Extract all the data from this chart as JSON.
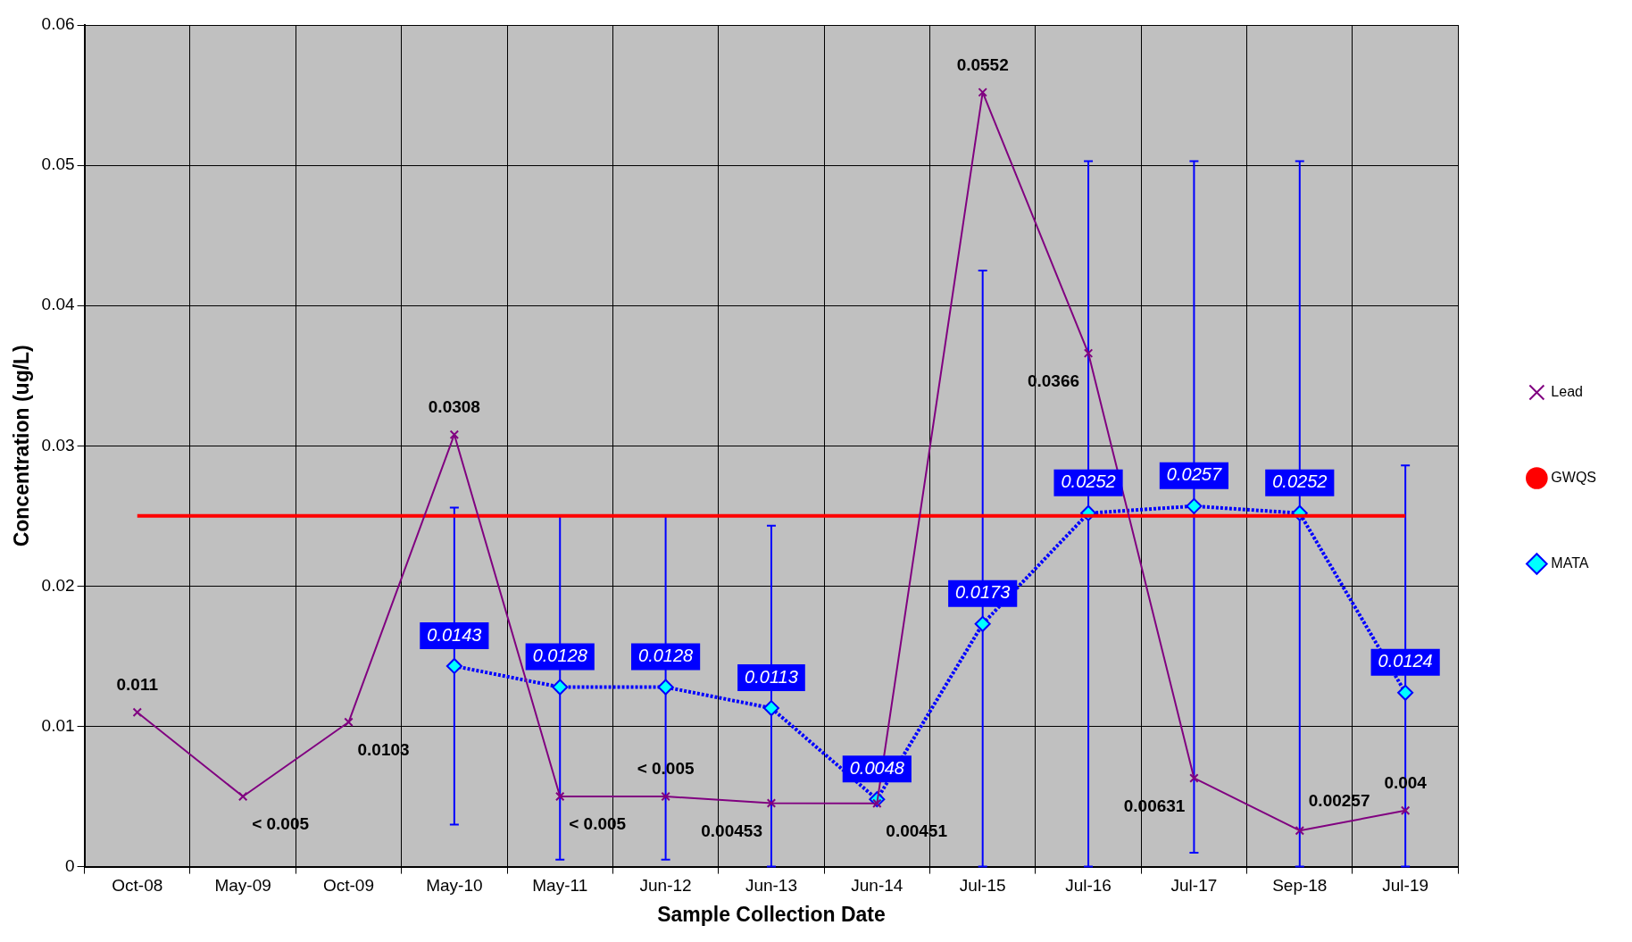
{
  "chart_data": {
    "type": "line",
    "xlabel": "Sample Collection Date",
    "ylabel": "Concentration (ug/L)",
    "categories": [
      "Oct-08",
      "May-09",
      "Oct-09",
      "May-10",
      "May-11",
      "Jun-12",
      "Jun-13",
      "Jun-14",
      "Jul-15",
      "Jul-16",
      "Jul-17",
      "Sep-18",
      "Jul-19"
    ],
    "series": [
      {
        "name": "Lead",
        "color": "#800080",
        "marker": "cross",
        "line_style": "solid",
        "values": [
          0.011,
          0.005,
          0.0103,
          0.0308,
          0.005,
          0.005,
          0.00453,
          0.00451,
          0.0552,
          0.0366,
          0.00631,
          0.00257,
          0.004
        ],
        "value_labels": [
          "0.011",
          "< 0.005",
          "0.0103",
          "0.0308",
          "< 0.005",
          "< 0.005",
          "0.00453",
          "0.00451",
          "0.0552",
          "0.0366",
          "0.00631",
          "0.00257",
          "0.004"
        ]
      },
      {
        "name": "GWQS",
        "color": "#ff0000",
        "marker": "none",
        "line_style": "solid",
        "values": [
          0.025,
          0.025,
          0.025,
          0.025,
          0.025,
          0.025,
          0.025,
          0.025,
          0.025,
          0.025,
          0.025,
          0.025,
          0.025
        ]
      },
      {
        "name": "MATA",
        "color": "#0000ff",
        "marker": "diamond",
        "line_style": "dotted",
        "values": [
          null,
          null,
          null,
          0.0143,
          0.0128,
          0.0128,
          0.0113,
          0.0048,
          0.0173,
          0.0252,
          0.0257,
          0.0252,
          0.0124
        ],
        "value_labels": [
          null,
          null,
          null,
          "0.0143",
          "0.0128",
          "0.0128",
          "0.0113",
          "0.0048",
          "0.0173",
          "0.0252",
          "0.0257",
          "0.0252",
          "0.0124"
        ],
        "errors": [
          null,
          null,
          null,
          [
            0.003,
            0.0256
          ],
          [
            0.0005,
            0.025
          ],
          [
            0.0005,
            0.025
          ],
          [
            0,
            0.0243
          ],
          null,
          [
            0,
            0.0425
          ],
          [
            0,
            0.0503
          ],
          [
            0.001,
            0.0503
          ],
          [
            0,
            0.0503
          ],
          [
            0,
            0.0286
          ]
        ]
      }
    ],
    "ylim": [
      0,
      0.06
    ],
    "yticks": [
      0,
      0.01,
      0.02,
      0.03,
      0.04,
      0.05,
      0.06
    ],
    "grid": true,
    "legend": "right"
  }
}
